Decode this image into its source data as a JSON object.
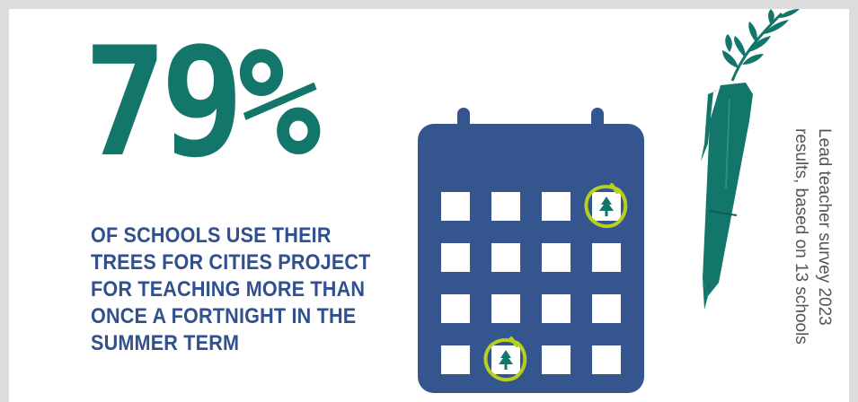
{
  "stat": {
    "value": "79%"
  },
  "description": {
    "lines": [
      "OF SCHOOLS USE THEIR",
      "TREES FOR CITIES PROJECT",
      "FOR TEACHING MORE THAN",
      "ONCE A FORTNIGHT IN THE",
      "SUMMER TERM"
    ]
  },
  "source": {
    "lines": [
      "Lead teacher survey 2023",
      "results, based on 13 schools"
    ]
  },
  "calendar": {
    "rows": 4,
    "cols": 4,
    "marked_days": [
      {
        "row": 1,
        "col": 4,
        "icon": "tree-icon"
      },
      {
        "row": 4,
        "col": 2,
        "icon": "tree-icon"
      }
    ]
  },
  "colors": {
    "stat_green": "#12766a",
    "text_blue": "#31508f",
    "calendar_blue": "#35558f",
    "highlight_lime": "#b8cf1c",
    "source_grey": "#555555",
    "background": "#ffffff",
    "frame": "#dcdcdc"
  },
  "icons": [
    "calendar-icon",
    "tree-icon",
    "pen-icon",
    "leaf-sprig-icon"
  ]
}
